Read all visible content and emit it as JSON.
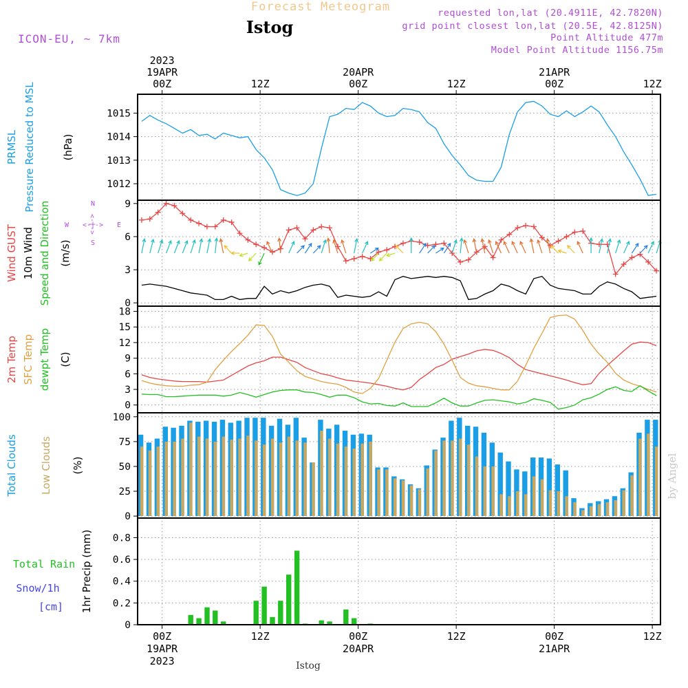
{
  "header": {
    "forecast_label": "Forecast Meteogram",
    "station_title": "Istog",
    "model_label": "ICON-EU, ~ 7km",
    "requested": "requested lon,lat (20.4911E, 42.7820N)",
    "gridpoint": "grid point closest lon,lat (20.5E, 42.8125N)",
    "point_alt": "Point Altitude 477m",
    "model_alt": "Model Point Altitude 1156.75m",
    "footer_station": "Istog",
    "watermark": "by Angel"
  },
  "colors": {
    "frame": "#000000",
    "grid": "#999999",
    "pressure": "#1a9ee6",
    "gust": "#e84545",
    "wind": "#000000",
    "temp": "#e84545",
    "sfc_temp": "#e0a040",
    "dewpoint": "#22c022",
    "total_clouds": "#1a9ee6",
    "low_clouds": "#c8a860",
    "rain": "#22c022",
    "snow": "#4444ee",
    "header_orange": "#f0c88c",
    "header_purple": "#b04ed8"
  },
  "chart_data": {
    "type": "line",
    "time_axis": {
      "start": "2023-04-18T21:00Z",
      "step_hours": 1,
      "count": 64,
      "top_ticks": [
        {
          "hour": 3,
          "lines": [
            "2023",
            "19APR",
            "00Z"
          ]
        },
        {
          "hour": 15,
          "lines": [
            "12Z"
          ]
        },
        {
          "hour": 27,
          "lines": [
            "20APR",
            "00Z"
          ]
        },
        {
          "hour": 39,
          "lines": [
            "12Z"
          ]
        },
        {
          "hour": 51,
          "lines": [
            "21APR",
            "00Z"
          ]
        },
        {
          "hour": 63,
          "lines": [
            "12Z"
          ]
        }
      ],
      "bottom_ticks": [
        {
          "hour": 3,
          "lines": [
            "00Z",
            "19APR",
            "2023"
          ]
        },
        {
          "hour": 15,
          "lines": [
            "12Z"
          ]
        },
        {
          "hour": 27,
          "lines": [
            "00Z",
            "20APR"
          ]
        },
        {
          "hour": 39,
          "lines": [
            "12Z"
          ]
        },
        {
          "hour": 51,
          "lines": [
            "00Z",
            "21APR"
          ]
        },
        {
          "hour": 63,
          "lines": [
            "12Z"
          ]
        }
      ]
    },
    "panels": [
      {
        "id": "pressure",
        "labels": [
          {
            "text": "PRMSL",
            "color": "#1a9ee6"
          },
          {
            "text": "Pressure Reduced to MSL",
            "color": "#1a9ee6"
          },
          {
            "text": "(hPa)",
            "color": "#000000"
          }
        ],
        "ylim": [
          1011.3,
          1015.8
        ],
        "yticks": [
          1012,
          1013,
          1014,
          1015
        ],
        "series": [
          {
            "type": "line",
            "color": "#1a9ee6",
            "values": [
              1014.65,
              1014.9,
              1014.7,
              1014.55,
              1014.35,
              1014.15,
              1014.3,
              1014.05,
              1014.1,
              1013.9,
              1014.15,
              1014.05,
              1013.95,
              1014.0,
              1013.45,
              1013.1,
              1012.6,
              1011.75,
              1011.6,
              1011.5,
              1011.6,
              1012.0,
              1013.5,
              1014.85,
              1014.95,
              1015.2,
              1015.15,
              1015.45,
              1015.3,
              1015.0,
              1014.85,
              1014.9,
              1015.2,
              1015.15,
              1015.05,
              1014.6,
              1014.35,
              1013.7,
              1013.2,
              1012.8,
              1012.35,
              1012.15,
              1012.1,
              1012.1,
              1012.7,
              1014.1,
              1015.05,
              1015.45,
              1015.5,
              1015.3,
              1014.95,
              1014.85,
              1015.1,
              1014.85,
              1015.05,
              1015.3,
              1015.05,
              1014.5,
              1014.0,
              1013.35,
              1012.8,
              1012.2,
              1011.5,
              1011.55
            ]
          }
        ]
      },
      {
        "id": "wind",
        "labels": [
          {
            "text": "Wind GUST",
            "color": "#e84545"
          },
          {
            "text": "10m Wind",
            "color": "#000000"
          },
          {
            "text": "Speed and Direction",
            "color": "#22c022"
          },
          {
            "text": "(m/s)",
            "color": "#000000"
          }
        ],
        "compass": {
          "n": "N",
          "s": "S",
          "w": "W",
          "e": "E",
          "arrow_h": "<-|->",
          "color": "#b04ed8"
        },
        "ylim": [
          -0.3,
          9.3
        ],
        "yticks": [
          0,
          3,
          6,
          9
        ],
        "series": [
          {
            "type": "line-markers",
            "marker": "+",
            "name": "Wind GUST",
            "color": "#e84545",
            "values": [
              7.5,
              7.6,
              8.2,
              9.0,
              8.8,
              8.1,
              7.5,
              7.2,
              6.9,
              6.9,
              7.5,
              7.3,
              6.3,
              5.7,
              5.3,
              5.0,
              4.6,
              4.9,
              6.6,
              6.8,
              5.8,
              6.6,
              6.9,
              6.8,
              5.1,
              3.8,
              4.0,
              4.2,
              4.0,
              4.6,
              4.8,
              5.1,
              5.4,
              5.6,
              5.5,
              5.2,
              5.3,
              5.4,
              4.5,
              3.7,
              3.9,
              4.6,
              5.1,
              4.1,
              5.7,
              6.2,
              6.8,
              7.0,
              6.9,
              5.9,
              5.2,
              5.6,
              6.0,
              6.4,
              6.5,
              5.4,
              5.3,
              5.3,
              2.6,
              3.5,
              4.1,
              4.4,
              3.7,
              2.9
            ]
          },
          {
            "type": "line",
            "name": "10m Wind",
            "color": "#000000",
            "values": [
              1.6,
              1.7,
              1.6,
              1.5,
              1.3,
              1.1,
              0.9,
              0.8,
              0.7,
              0.3,
              0.3,
              0.6,
              0.3,
              0.4,
              0.4,
              1.5,
              0.8,
              1.1,
              0.9,
              1.1,
              1.4,
              1.6,
              1.7,
              1.5,
              0.5,
              0.7,
              0.6,
              0.5,
              0.6,
              1.0,
              0.6,
              2.1,
              2.4,
              2.2,
              2.3,
              2.4,
              2.3,
              2.4,
              2.3,
              2.0,
              0.3,
              0.4,
              0.8,
              1.1,
              1.7,
              1.5,
              1.1,
              0.8,
              2.2,
              2.4,
              1.6,
              1.3,
              1.2,
              1.1,
              0.8,
              0.8,
              1.5,
              1.9,
              1.7,
              1.3,
              1.0,
              0.4,
              0.5,
              0.6
            ]
          },
          {
            "type": "arrows",
            "name": "Speed and Direction",
            "dir_deg": [
              200,
              205,
              210,
              215,
              215,
              215,
              210,
              200,
              200,
              190,
              160,
              120,
              90,
              80,
              60,
              40,
              140,
              170,
              220,
              240,
              230,
              240,
              210,
              170,
              150,
              150,
              200,
              220,
              250,
              60,
              60,
              80,
              120,
              180,
              230,
              240,
              250,
              230,
              210,
              190,
              150,
              160,
              160,
              150,
              140,
              140,
              140,
              140,
              160,
              150,
              160,
              120,
              100,
              120,
              140,
              180,
              200,
              200,
              210,
              220,
              230,
              240,
              220,
              210
            ],
            "color_scale": [
              "#22c022",
              "#c0e020",
              "#f0c030",
              "#e07030",
              "#20c0c0",
              "#2080e0",
              "#6040e0",
              "#a020c0"
            ]
          }
        ]
      },
      {
        "id": "temperature",
        "labels": [
          {
            "text": "2m Temp",
            "color": "#e84545"
          },
          {
            "text": "SFC Temp",
            "color": "#e0a040"
          },
          {
            "text": "dewpt Temp",
            "color": "#22c022"
          },
          {
            "text": "(C)",
            "color": "#000000"
          }
        ],
        "ylim": [
          -1.5,
          19
        ],
        "yticks": [
          0,
          3,
          6,
          9,
          12,
          15,
          18
        ],
        "series": [
          {
            "type": "line",
            "name": "2m Temp",
            "color": "#e84545",
            "values": [
              5.8,
              5.3,
              5.0,
              4.8,
              4.6,
              4.5,
              4.5,
              4.5,
              4.4,
              4.6,
              4.8,
              5.7,
              6.6,
              7.5,
              8.1,
              8.5,
              9.2,
              9.2,
              8.7,
              8.2,
              7.2,
              6.6,
              6.0,
              5.7,
              5.2,
              4.8,
              4.6,
              4.4,
              4.2,
              3.9,
              3.6,
              3.2,
              2.9,
              3.4,
              4.9,
              6.0,
              7.2,
              7.8,
              8.8,
              9.3,
              9.8,
              10.4,
              10.7,
              10.5,
              9.9,
              9.1,
              7.8,
              6.8,
              6.4,
              6.0,
              5.6,
              5.2,
              4.8,
              4.3,
              3.9,
              4.1,
              6.1,
              7.6,
              9.0,
              10.4,
              11.7,
              12.1,
              12.0,
              11.4
            ]
          },
          {
            "type": "line",
            "name": "SFC Temp",
            "color": "#e0a040",
            "values": [
              4.7,
              4.2,
              3.9,
              3.7,
              3.6,
              3.6,
              3.8,
              3.9,
              4.4,
              6.8,
              8.6,
              10.3,
              11.8,
              13.4,
              15.4,
              15.3,
              13.2,
              9.8,
              8.2,
              6.6,
              5.5,
              5.0,
              4.5,
              4.2,
              4.0,
              3.4,
              2.5,
              2.2,
              3.2,
              5.1,
              8.6,
              12.1,
              14.7,
              15.6,
              15.9,
              15.6,
              14.1,
              11.7,
              8.6,
              5.3,
              4.2,
              3.7,
              3.5,
              3.2,
              2.9,
              2.9,
              4.6,
              7.6,
              10.9,
              13.8,
              16.8,
              17.2,
              17.3,
              16.5,
              14.3,
              11.7,
              9.8,
              8.2,
              6.1,
              4.8,
              4.1,
              3.6,
              3.0,
              2.5
            ]
          },
          {
            "type": "line",
            "name": "dewpt Temp",
            "color": "#22c022",
            "values": [
              2.1,
              2.0,
              2.0,
              1.6,
              1.6,
              1.7,
              1.8,
              1.9,
              1.9,
              1.9,
              1.7,
              1.9,
              2.4,
              2.0,
              1.5,
              2.0,
              2.5,
              2.8,
              2.9,
              2.9,
              2.5,
              2.4,
              2.0,
              1.5,
              1.9,
              1.9,
              1.4,
              0.6,
              0.2,
              0.3,
              -0.1,
              -0.2,
              0.4,
              -0.3,
              -0.3,
              -0.3,
              0.4,
              1.3,
              0.4,
              -0.2,
              -0.2,
              0.4,
              0.9,
              1.0,
              0.8,
              0.6,
              0.2,
              0.5,
              1.2,
              0.9,
              0.5,
              -0.8,
              -0.5,
              0.0,
              1.0,
              1.4,
              2.1,
              3.0,
              3.5,
              2.8,
              2.6,
              3.7,
              2.7,
              1.8
            ]
          }
        ]
      },
      {
        "id": "clouds",
        "labels": [
          {
            "text": "Total Clouds",
            "color": "#1a9ee6"
          },
          {
            "text": "Low Clouds",
            "color": "#c8a860"
          },
          {
            "text": "(%)",
            "color": "#000000"
          }
        ],
        "ylim": [
          -2,
          104
        ],
        "yticks": [
          0,
          25,
          50,
          75,
          100
        ],
        "series": [
          {
            "type": "bar-pair",
            "name": "Total Clouds",
            "color": "#1a9ee6",
            "values": [
              82,
              74,
              78,
              90,
              89,
              91,
              96,
              95,
              96,
              95,
              97,
              94,
              96,
              99,
              99,
              99,
              91,
              98,
              92,
              99,
              79,
              54,
              97,
              88,
              92,
              86,
              82,
              83,
              82,
              49,
              49,
              40,
              37,
              32,
              28,
              51,
              67,
              79,
              96,
              99,
              91,
              90,
              84,
              74,
              64,
              55,
              47,
              45,
              59,
              59,
              58,
              52,
              46,
              18,
              8,
              13,
              15,
              17,
              20,
              28,
              44,
              84,
              97,
              97
            ]
          },
          {
            "type": "bar-pair",
            "name": "Low Clouds",
            "color": "#c8a860",
            "values": [
              70,
              66,
              70,
              75,
              75,
              78,
              94,
              80,
              78,
              75,
              80,
              77,
              78,
              81,
              76,
              72,
              78,
              74,
              80,
              76,
              74,
              54,
              86,
              78,
              73,
              70,
              68,
              73,
              75,
              47,
              47,
              38,
              36,
              31,
              27,
              48,
              66,
              76,
              76,
              78,
              72,
              60,
              50,
              50,
              22,
              20,
              25,
              22,
              40,
              37,
              26,
              25,
              20,
              14,
              6,
              10,
              12,
              14,
              16,
              26,
              41,
              78,
              83,
              70
            ]
          }
        ]
      },
      {
        "id": "precip",
        "labels": [
          {
            "text": "1hr Precip (mm)",
            "color": "#000000"
          }
        ],
        "left_labels": [
          {
            "text": "Total  Rain",
            "color": "#22c022"
          },
          {
            "text": "Snow/1h",
            "color": "#4444ee"
          },
          {
            "text": "[cm]",
            "color": "#4444ee"
          }
        ],
        "ylim": [
          0,
          0.98
        ],
        "yticks": [
          0,
          0.2,
          0.4,
          0.6,
          0.8
        ],
        "ytick_labels": [
          "0",
          "0.2",
          "0.4",
          "0.6",
          "0.8"
        ],
        "series": [
          {
            "type": "bar",
            "name": "Total Rain",
            "color": "#22c022",
            "values": [
              0,
              0,
              0,
              0,
              0,
              0,
              0.09,
              0.06,
              0.16,
              0.13,
              0.03,
              0,
              0,
              0,
              0.22,
              0.35,
              0.07,
              0.22,
              0.46,
              0.68,
              0.01,
              0,
              0.04,
              0.03,
              0,
              0.14,
              0.06,
              0,
              0.01,
              0,
              0,
              0,
              0,
              0,
              0,
              0,
              0,
              0,
              0,
              0,
              0,
              0,
              0,
              0,
              0,
              0,
              0,
              0,
              0,
              0,
              0,
              0,
              0,
              0,
              0,
              0,
              0,
              0,
              0,
              0,
              0,
              0,
              0,
              0
            ]
          }
        ]
      }
    ]
  }
}
